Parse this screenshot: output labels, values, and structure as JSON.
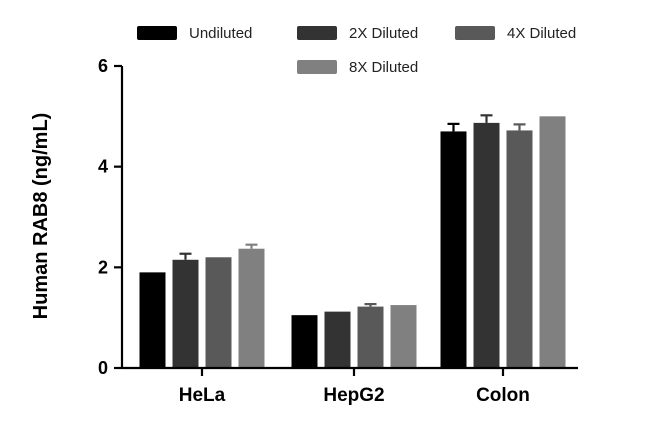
{
  "chart_data": {
    "type": "bar",
    "ylabel": "Human RAB8 (ng/mL)",
    "xlabel": "",
    "ylim": [
      0,
      6
    ],
    "yticks": [
      0,
      2,
      4,
      6
    ],
    "grid": false,
    "legend_position": "top",
    "categories": [
      "HeLa",
      "HepG2",
      "Colon"
    ],
    "series": [
      {
        "name": "Undiluted",
        "color": "#000000",
        "values": [
          1.9,
          1.05,
          4.7
        ],
        "errors": [
          0.0,
          0.0,
          0.15
        ]
      },
      {
        "name": "2X Diluted",
        "color": "#333333",
        "values": [
          2.15,
          1.12,
          4.87
        ],
        "errors": [
          0.12,
          0.0,
          0.15
        ]
      },
      {
        "name": "4X Diluted",
        "color": "#595959",
        "values": [
          2.2,
          1.22,
          4.72
        ],
        "errors": [
          0.0,
          0.05,
          0.12
        ]
      },
      {
        "name": "8X Diluted",
        "color": "#808080",
        "values": [
          2.37,
          1.25,
          5.0
        ],
        "errors": [
          0.08,
          0.0,
          0.0
        ]
      }
    ]
  }
}
